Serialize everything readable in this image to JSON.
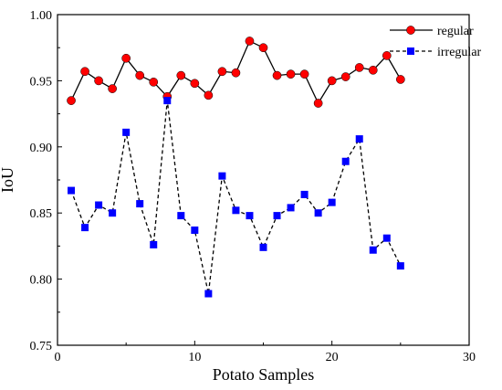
{
  "chart_data": {
    "type": "line",
    "title": "",
    "xlabel": "Potato Samples",
    "ylabel": "IoU",
    "xlim": [
      0,
      30
    ],
    "ylim": [
      0.75,
      1.0
    ],
    "xticks": [
      "0",
      "10",
      "20",
      "30"
    ],
    "yticks": [
      "0.75",
      "0.80",
      "0.85",
      "0.90",
      "0.95",
      "1.00"
    ],
    "grid": false,
    "legend_position": "top-right",
    "x": [
      1,
      2,
      3,
      4,
      5,
      6,
      7,
      8,
      9,
      10,
      11,
      12,
      13,
      14,
      15,
      16,
      17,
      18,
      19,
      20,
      21,
      22,
      23,
      24,
      25
    ],
    "series": [
      {
        "name": "regular",
        "color": "#ff0000",
        "line_style": "solid",
        "marker": "circle",
        "values": [
          0.935,
          0.957,
          0.95,
          0.944,
          0.967,
          0.954,
          0.949,
          0.938,
          0.954,
          0.948,
          0.939,
          0.957,
          0.956,
          0.98,
          0.975,
          0.954,
          0.955,
          0.955,
          0.933,
          0.95,
          0.953,
          0.96,
          0.958,
          0.969,
          0.951
        ]
      },
      {
        "name": "irregular",
        "color": "#0000ff",
        "line_style": "dashed",
        "marker": "square",
        "values": [
          0.867,
          0.839,
          0.856,
          0.85,
          0.911,
          0.857,
          0.826,
          0.935,
          0.848,
          0.837,
          0.789,
          0.878,
          0.852,
          0.848,
          0.824,
          0.848,
          0.854,
          0.864,
          0.85,
          0.858,
          0.889,
          0.906,
          0.822,
          0.831,
          0.81
        ]
      }
    ]
  }
}
